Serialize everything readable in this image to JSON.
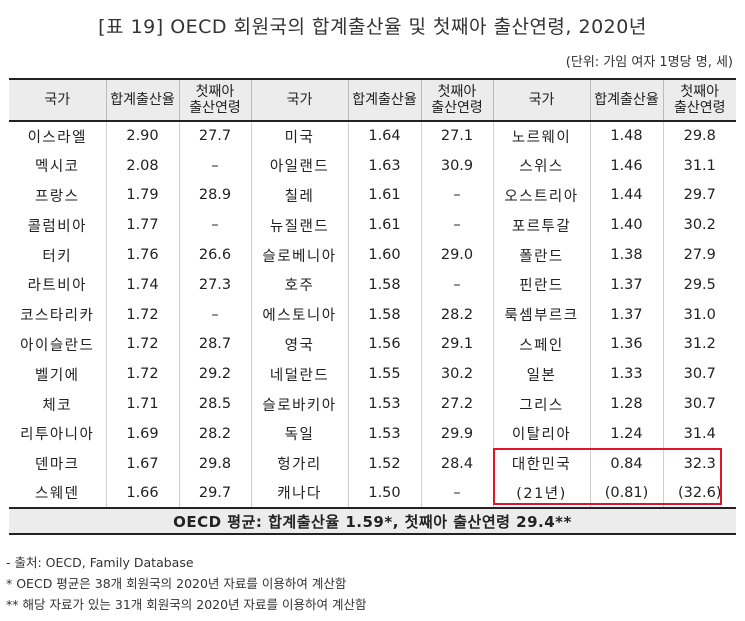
{
  "title": "[표 19] OECD 회원국의 합계출산율 및 첫째아 출산연령, 2020년",
  "unit": "(단위: 가임 여자 1명당 명, 세)",
  "headers": {
    "country": "국가",
    "tfr": "합계출산율",
    "age_line1": "첫째아",
    "age_line2": "출산연령"
  },
  "rows": [
    [
      [
        "이스라엘",
        "2.90",
        "27.7"
      ],
      [
        "미국",
        "1.64",
        "27.1"
      ],
      [
        "노르웨이",
        "1.48",
        "29.8"
      ]
    ],
    [
      [
        "멕시코",
        "2.08",
        "–"
      ],
      [
        "아일랜드",
        "1.63",
        "30.9"
      ],
      [
        "스위스",
        "1.46",
        "31.1"
      ]
    ],
    [
      [
        "프랑스",
        "1.79",
        "28.9"
      ],
      [
        "칠레",
        "1.61",
        "–"
      ],
      [
        "오스트리아",
        "1.44",
        "29.7"
      ]
    ],
    [
      [
        "콜럼비아",
        "1.77",
        "–"
      ],
      [
        "뉴질랜드",
        "1.61",
        "–"
      ],
      [
        "포르투갈",
        "1.40",
        "30.2"
      ]
    ],
    [
      [
        "터키",
        "1.76",
        "26.6"
      ],
      [
        "슬로베니아",
        "1.60",
        "29.0"
      ],
      [
        "폴란드",
        "1.38",
        "27.9"
      ]
    ],
    [
      [
        "라트비아",
        "1.74",
        "27.3"
      ],
      [
        "호주",
        "1.58",
        "–"
      ],
      [
        "핀란드",
        "1.37",
        "29.5"
      ]
    ],
    [
      [
        "코스타리카",
        "1.72",
        "–"
      ],
      [
        "에스토니아",
        "1.58",
        "28.2"
      ],
      [
        "룩셈부르크",
        "1.37",
        "31.0"
      ]
    ],
    [
      [
        "아이슬란드",
        "1.72",
        "28.7"
      ],
      [
        "영국",
        "1.56",
        "29.1"
      ],
      [
        "스페인",
        "1.36",
        "31.2"
      ]
    ],
    [
      [
        "벨기에",
        "1.72",
        "29.2"
      ],
      [
        "네덜란드",
        "1.55",
        "30.2"
      ],
      [
        "일본",
        "1.33",
        "30.7"
      ]
    ],
    [
      [
        "체코",
        "1.71",
        "28.5"
      ],
      [
        "슬로바키아",
        "1.53",
        "27.2"
      ],
      [
        "그리스",
        "1.28",
        "30.7"
      ]
    ],
    [
      [
        "리투아니아",
        "1.69",
        "28.2"
      ],
      [
        "독일",
        "1.53",
        "29.9"
      ],
      [
        "이탈리아",
        "1.24",
        "31.4"
      ]
    ],
    [
      [
        "덴마크",
        "1.67",
        "29.8"
      ],
      [
        "헝가리",
        "1.52",
        "28.4"
      ],
      [
        "대한민국",
        "0.84",
        "32.3"
      ]
    ],
    [
      [
        "스웨덴",
        "1.66",
        "29.7"
      ],
      [
        "캐나다",
        "1.50",
        "–"
      ],
      [
        "(21년)",
        "(0.81)",
        "(32.6)"
      ]
    ]
  ],
  "average": "OECD 평균: 합계출산율 1.59*, 첫째아 출산연령 29.4**",
  "highlight_color": "#e0142a",
  "notes": [
    "- 출처: OECD, Family Database",
    " * OECD 평균은 38개 회원국의 2020년 자료를 이용하여 계산함",
    "** 해당 자료가 있는 31개 회원국의 2020년 자료를 이용하여 계산함"
  ]
}
